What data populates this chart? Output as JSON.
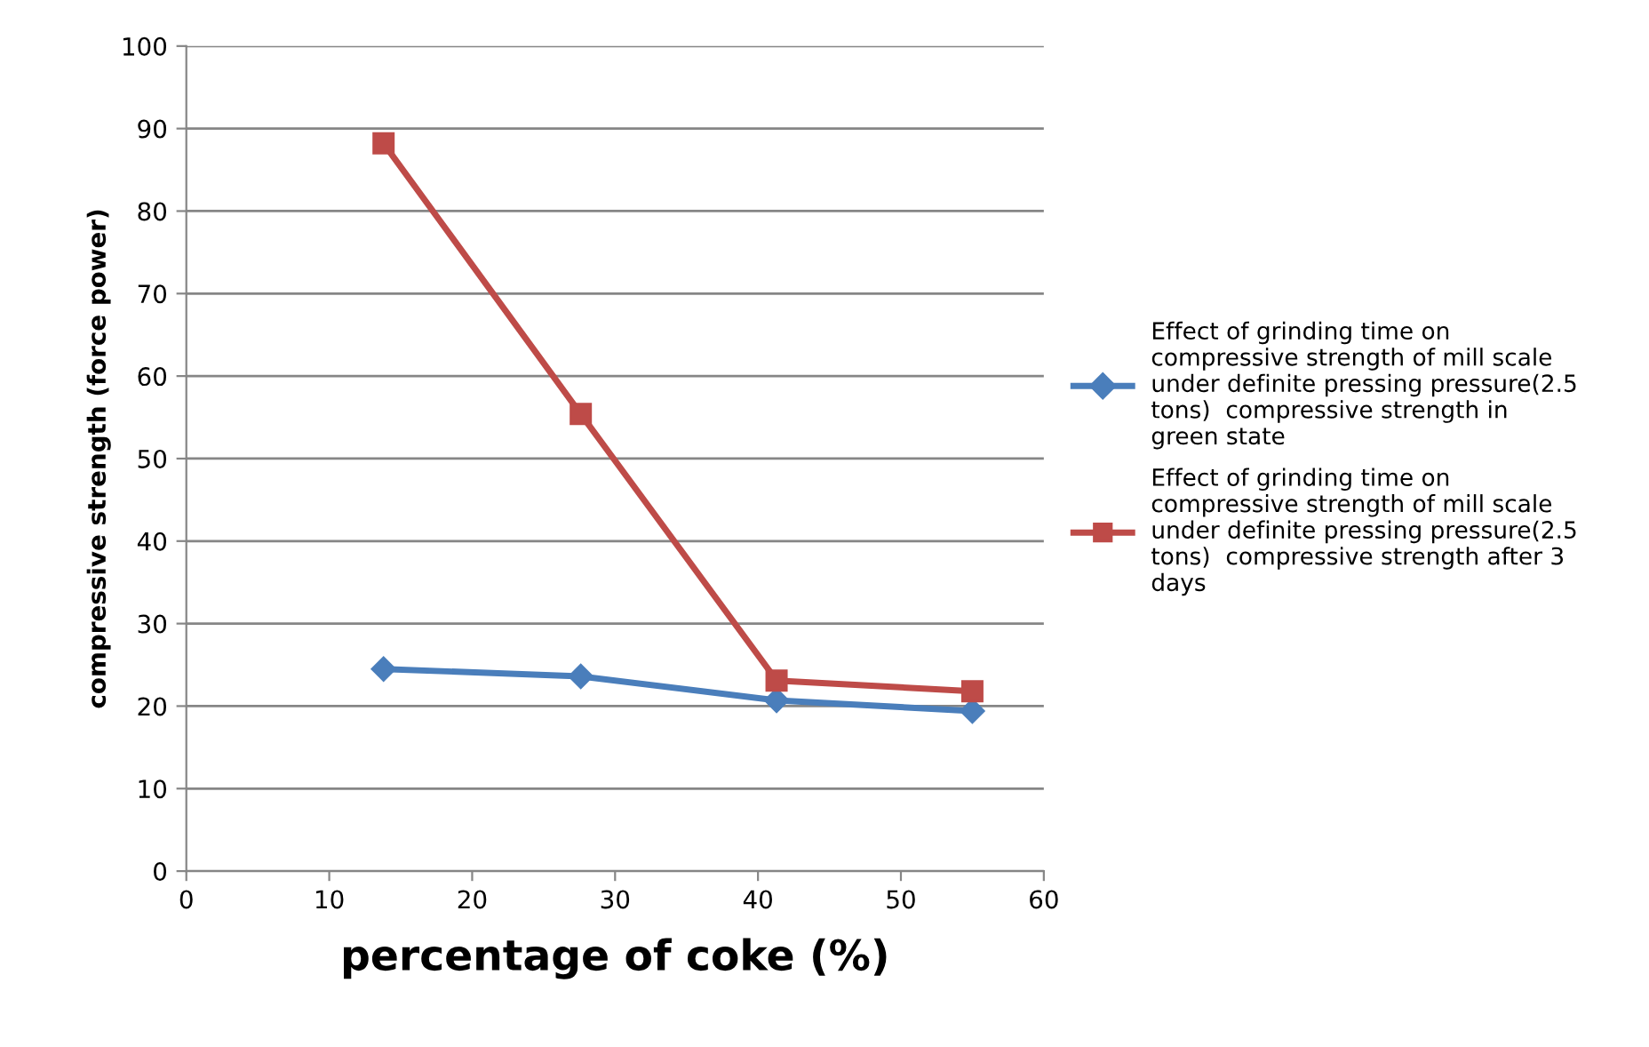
{
  "chart_data": {
    "type": "line",
    "xlabel": "percentage of coke (%)",
    "ylabel": "compressive strength (force power)",
    "x": [
      13.8,
      27.6,
      41.3,
      55.0
    ],
    "series": [
      {
        "name": "Effect of grinding time on compressive strength of mill scale under definite pressing pressure(2.5 tons)  compressive strength in green state",
        "color": "#4a7ebb",
        "marker": "diamond",
        "values": [
          24.5,
          23.6,
          20.7,
          19.4
        ]
      },
      {
        "name": "Effect of grinding time on compressive strength of mill scale under definite pressing pressure(2.5 tons)  compressive strength after 3 days",
        "color": "#be4b48",
        "marker": "square",
        "values": [
          88.2,
          55.4,
          23.1,
          21.8
        ]
      }
    ],
    "xlim": [
      0,
      60
    ],
    "xticks": [
      0,
      10,
      20,
      30,
      40,
      50,
      60
    ],
    "ylim": [
      0,
      100
    ],
    "yticks": [
      0,
      10,
      20,
      30,
      40,
      50,
      60,
      70,
      80,
      90,
      100
    ],
    "grid": "y",
    "legend": "right"
  }
}
